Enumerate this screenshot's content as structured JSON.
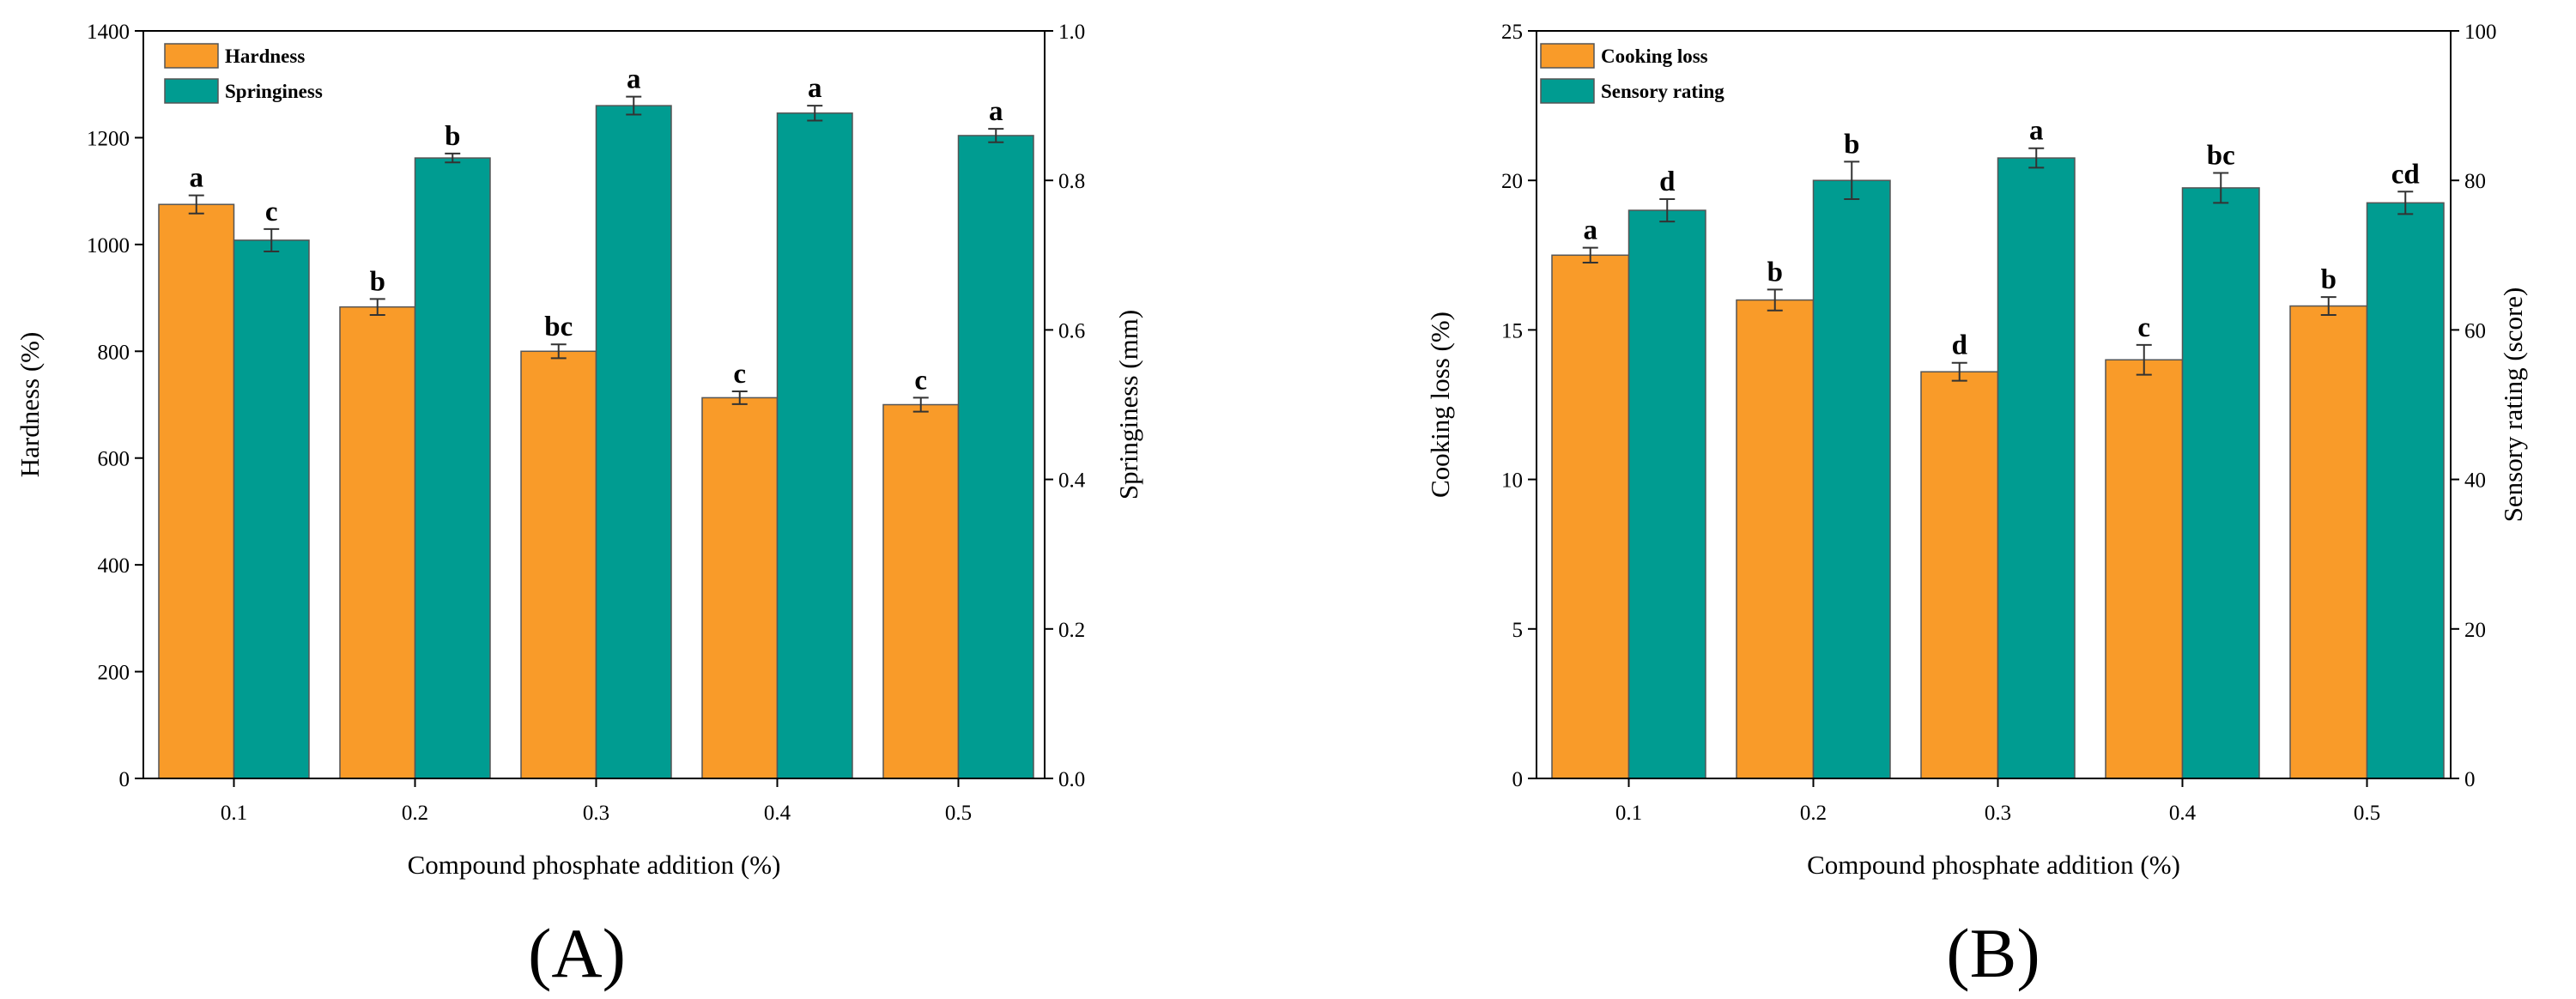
{
  "colors": {
    "primary": "#F99B29",
    "secondary": "#009C91",
    "axis": "#000000",
    "bar_edge": "#555555",
    "error": "#333333"
  },
  "chart_data": [
    {
      "type": "bar",
      "panel_label": "(A)",
      "categories": [
        "0.1",
        "0.2",
        "0.3",
        "0.4",
        "0.5"
      ],
      "xlabel": "Compound phosphate addition (%)",
      "ylabel_left": "Hardness (%)",
      "ylabel_right": "Springiness (mm)",
      "ylim_left": [
        0,
        1400
      ],
      "ylim_right": [
        0,
        1.0
      ],
      "yticks_left": [
        "0",
        "200",
        "400",
        "600",
        "800",
        "1000",
        "1200",
        "1400"
      ],
      "yticks_right": [
        "0.0",
        "0.2",
        "0.4",
        "0.6",
        "0.8",
        "1.0"
      ],
      "series": [
        {
          "name": "Hardness",
          "axis": "left",
          "values": [
            1075,
            883,
            800,
            713,
            700
          ],
          "errors": [
            17,
            15,
            13,
            12,
            13
          ],
          "letters": [
            "a",
            "b",
            "bc",
            "c",
            "c"
          ]
        },
        {
          "name": "Springiness",
          "axis": "right",
          "values": [
            0.72,
            0.83,
            0.9,
            0.89,
            0.86
          ],
          "errors": [
            0.015,
            0.006,
            0.012,
            0.01,
            0.009
          ],
          "letters": [
            "c",
            "b",
            "a",
            "a",
            "a"
          ]
        }
      ]
    },
    {
      "type": "bar",
      "panel_label": "(B)",
      "categories": [
        "0.1",
        "0.2",
        "0.3",
        "0.4",
        "0.5"
      ],
      "xlabel": "Compound phosphate addition (%)",
      "ylabel_left": "Cooking loss (%)",
      "ylabel_right": "Sensory rating (score)",
      "ylim_left": [
        0,
        25
      ],
      "ylim_right": [
        0,
        100
      ],
      "yticks_left": [
        "0",
        "5",
        "10",
        "15",
        "20",
        "25"
      ],
      "yticks_right": [
        "0",
        "20",
        "40",
        "60",
        "80",
        "100"
      ],
      "series": [
        {
          "name": "Cooking loss",
          "axis": "left",
          "values": [
            17.5,
            16.0,
            13.6,
            14.0,
            15.8
          ],
          "errors": [
            0.25,
            0.35,
            0.3,
            0.5,
            0.3
          ],
          "letters": [
            "a",
            "b",
            "d",
            "c",
            "b"
          ]
        },
        {
          "name": "Sensory rating",
          "axis": "right",
          "values": [
            76,
            80,
            83,
            79,
            77
          ],
          "errors": [
            1.5,
            2.5,
            1.3,
            2.0,
            1.5
          ],
          "letters": [
            "d",
            "b",
            "a",
            "bc",
            "cd"
          ]
        }
      ]
    }
  ]
}
